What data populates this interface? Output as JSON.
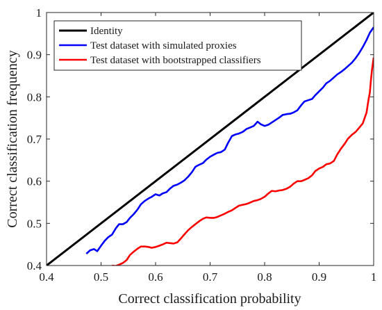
{
  "chart_data": {
    "type": "line",
    "xlabel": "Correct classification probability",
    "ylabel": "Correct classification frequency",
    "xlim": [
      0.4,
      1
    ],
    "ylim": [
      0.4,
      1
    ],
    "xticks": [
      "0.4",
      "0.5",
      "0.6",
      "0.7",
      "0.8",
      "0.9",
      "1"
    ],
    "yticks": [
      "0.4",
      "0.5",
      "0.6",
      "0.7",
      "0.8",
      "0.9",
      "1"
    ],
    "grid": false,
    "legend_position": "top-left",
    "series": [
      {
        "name": "Identity",
        "color": "#000000",
        "x": [
          0.4,
          1.0
        ],
        "y": [
          0.4,
          1.0
        ]
      },
      {
        "name": "Test dataset with simulated proxies",
        "color": "#0000ff",
        "x": [
          0.473,
          0.48,
          0.487,
          0.493,
          0.5,
          0.507,
          0.513,
          0.52,
          0.527,
          0.533,
          0.54,
          0.547,
          0.553,
          0.56,
          0.567,
          0.573,
          0.58,
          0.587,
          0.593,
          0.6,
          0.607,
          0.613,
          0.62,
          0.627,
          0.633,
          0.64,
          0.647,
          0.653,
          0.66,
          0.667,
          0.673,
          0.68,
          0.687,
          0.693,
          0.7,
          0.707,
          0.713,
          0.72,
          0.727,
          0.733,
          0.74,
          0.747,
          0.753,
          0.76,
          0.767,
          0.773,
          0.78,
          0.787,
          0.793,
          0.8,
          0.807,
          0.813,
          0.82,
          0.827,
          0.833,
          0.84,
          0.847,
          0.853,
          0.86,
          0.867,
          0.873,
          0.88,
          0.887,
          0.893,
          0.9,
          0.907,
          0.913,
          0.92,
          0.927,
          0.933,
          0.94,
          0.947,
          0.953,
          0.96,
          0.967,
          0.973,
          0.98,
          0.987,
          0.993,
          1.0
        ],
        "y": [
          0.428,
          0.436,
          0.439,
          0.434,
          0.447,
          0.459,
          0.467,
          0.473,
          0.488,
          0.498,
          0.498,
          0.503,
          0.513,
          0.522,
          0.533,
          0.545,
          0.553,
          0.559,
          0.563,
          0.569,
          0.566,
          0.571,
          0.574,
          0.583,
          0.589,
          0.592,
          0.597,
          0.602,
          0.611,
          0.622,
          0.634,
          0.639,
          0.643,
          0.651,
          0.658,
          0.663,
          0.667,
          0.669,
          0.675,
          0.691,
          0.707,
          0.711,
          0.713,
          0.717,
          0.724,
          0.727,
          0.731,
          0.741,
          0.735,
          0.731,
          0.734,
          0.739,
          0.745,
          0.751,
          0.757,
          0.759,
          0.76,
          0.763,
          0.768,
          0.78,
          0.789,
          0.792,
          0.795,
          0.804,
          0.813,
          0.822,
          0.832,
          0.838,
          0.846,
          0.853,
          0.859,
          0.866,
          0.873,
          0.881,
          0.892,
          0.903,
          0.918,
          0.935,
          0.952,
          0.965
        ]
      },
      {
        "name": "Test dataset with bootstrapped classifiers",
        "color": "#ff0000",
        "x": [
          0.52,
          0.527,
          0.533,
          0.54,
          0.547,
          0.553,
          0.56,
          0.567,
          0.573,
          0.58,
          0.587,
          0.593,
          0.6,
          0.607,
          0.613,
          0.62,
          0.627,
          0.633,
          0.64,
          0.647,
          0.653,
          0.66,
          0.667,
          0.673,
          0.68,
          0.687,
          0.693,
          0.7,
          0.707,
          0.713,
          0.72,
          0.727,
          0.733,
          0.74,
          0.747,
          0.753,
          0.76,
          0.767,
          0.773,
          0.78,
          0.787,
          0.793,
          0.8,
          0.807,
          0.813,
          0.82,
          0.827,
          0.833,
          0.84,
          0.847,
          0.853,
          0.86,
          0.867,
          0.873,
          0.88,
          0.887,
          0.893,
          0.9,
          0.907,
          0.913,
          0.92,
          0.927,
          0.933,
          0.94,
          0.947,
          0.953,
          0.96,
          0.967,
          0.973,
          0.98,
          0.987,
          0.99,
          0.993,
          0.995,
          0.997,
          1.0
        ],
        "y": [
          0.4,
          0.399,
          0.402,
          0.406,
          0.413,
          0.425,
          0.433,
          0.44,
          0.445,
          0.445,
          0.444,
          0.442,
          0.444,
          0.447,
          0.45,
          0.454,
          0.453,
          0.452,
          0.455,
          0.465,
          0.474,
          0.484,
          0.492,
          0.498,
          0.505,
          0.511,
          0.514,
          0.513,
          0.513,
          0.515,
          0.519,
          0.523,
          0.527,
          0.531,
          0.537,
          0.542,
          0.544,
          0.546,
          0.549,
          0.553,
          0.555,
          0.558,
          0.563,
          0.571,
          0.577,
          0.576,
          0.578,
          0.579,
          0.582,
          0.587,
          0.594,
          0.6,
          0.6,
          0.603,
          0.607,
          0.614,
          0.624,
          0.63,
          0.634,
          0.64,
          0.642,
          0.648,
          0.663,
          0.677,
          0.689,
          0.701,
          0.71,
          0.717,
          0.726,
          0.737,
          0.763,
          0.789,
          0.81,
          0.84,
          0.865,
          0.893
        ]
      }
    ]
  }
}
